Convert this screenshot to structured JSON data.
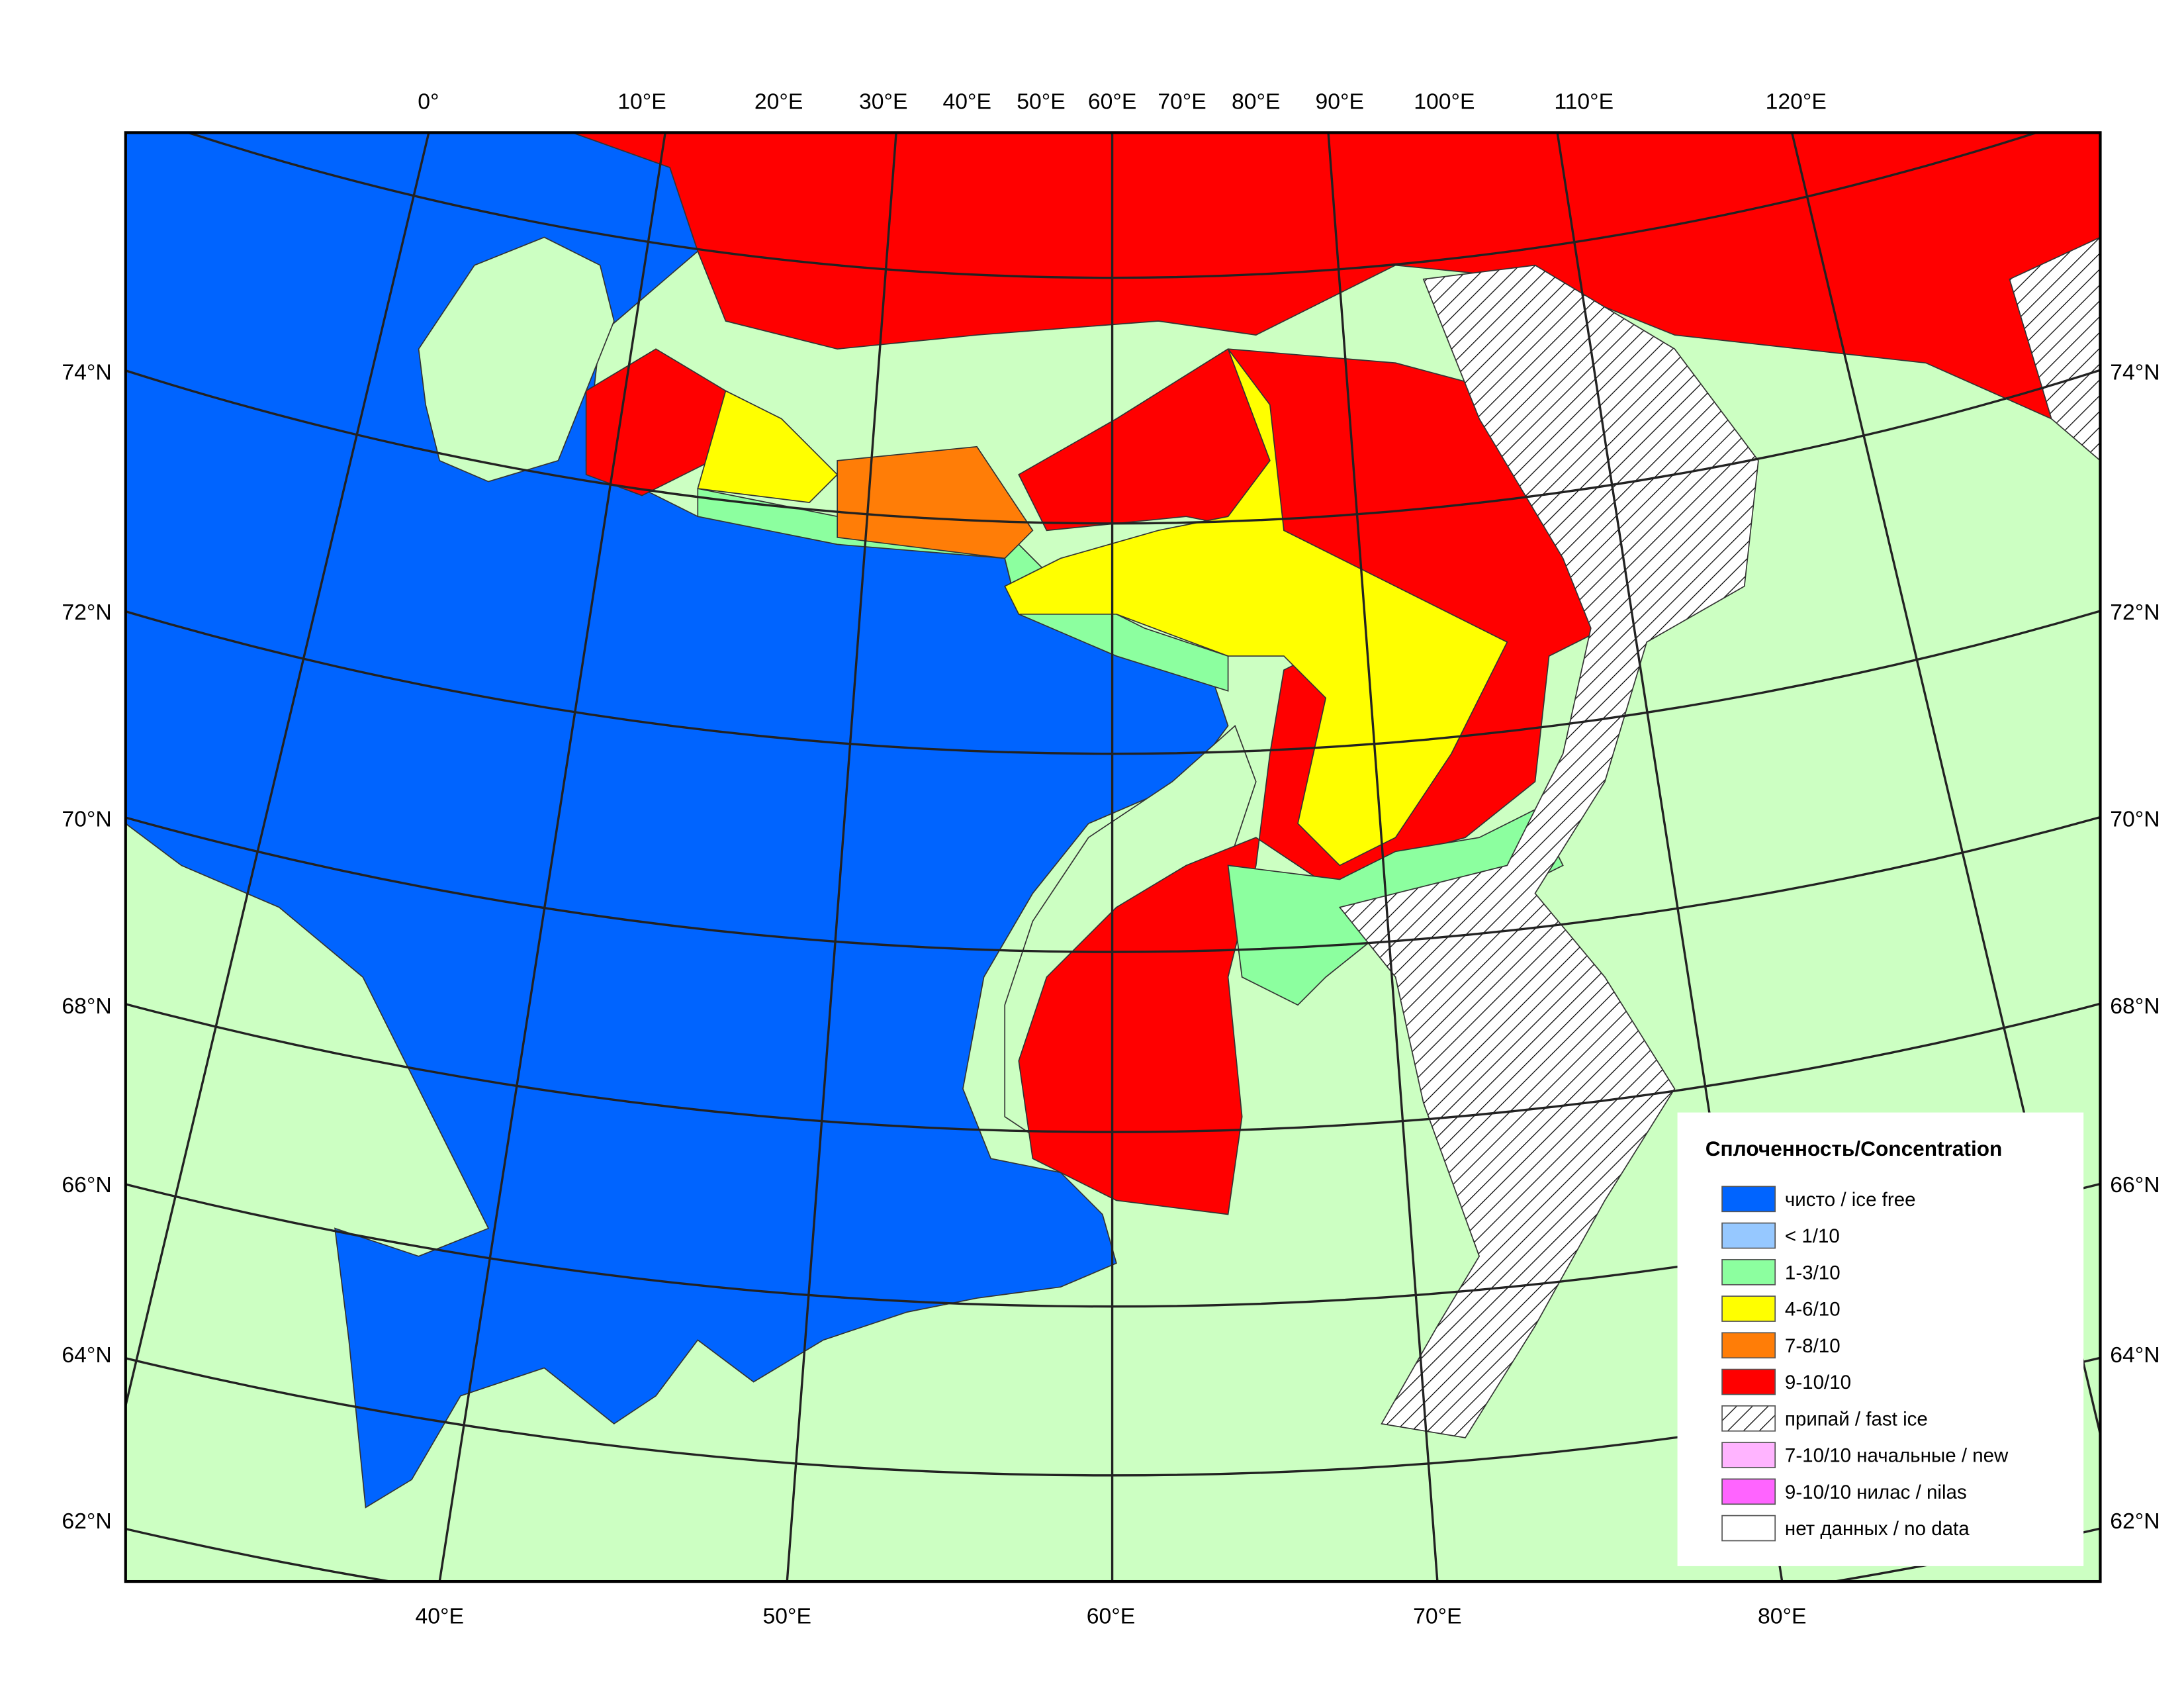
{
  "map": {
    "top_longitude_labels": [
      "0°",
      "10°E",
      "20°E",
      "30°E",
      "40°E",
      "50°E",
      "60°E",
      "70°E",
      "80°E",
      "90°E",
      "100°E",
      "110°E",
      "120°E"
    ],
    "bottom_longitude_labels": [
      "40°E",
      "50°E",
      "60°E",
      "70°E",
      "80°E"
    ],
    "left_latitude_labels": [
      "74°N",
      "72°N",
      "70°N",
      "68°N",
      "66°N",
      "64°N",
      "62°N"
    ],
    "right_latitude_labels": [
      "74°N",
      "72°N",
      "70°N",
      "68°N",
      "66°N",
      "64°N",
      "62°N"
    ]
  },
  "legend": {
    "title": "Сплоченность/Concentration",
    "items": [
      {
        "label": "чисто / ice free",
        "color": "#0064ff"
      },
      {
        "label": "< 1/10",
        "color": "#96c8ff"
      },
      {
        "label": "1-3/10",
        "color": "#8cff9f"
      },
      {
        "label": "4-6/10",
        "color": "#ffff00"
      },
      {
        "label": "7-8/10",
        "color": "#ff7d07"
      },
      {
        "label": "9-10/10",
        "color": "#ff0000"
      },
      {
        "label": "припай / fast ice",
        "pattern": "hatch"
      },
      {
        "label": "7-10/10 начальные / new",
        "color": "#ffb4ff"
      },
      {
        "label": "9-10/10 нилас / nilas",
        "color": "#ff64ff"
      },
      {
        "label": "нет данных / no data",
        "color": "#ffffff"
      }
    ]
  }
}
